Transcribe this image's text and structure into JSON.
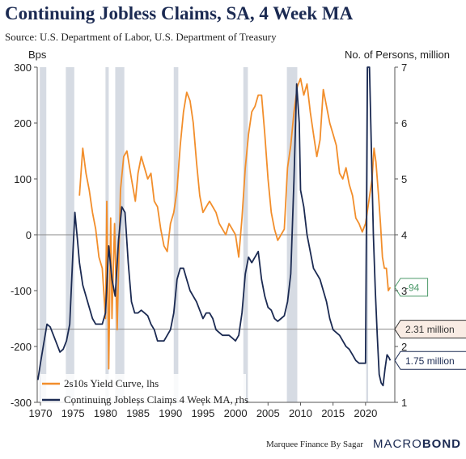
{
  "header": {
    "title": "Continuing Jobless Claims, SA, 4 Week MA",
    "source": "Source: U.S. Department of Labor, U.S. Department of Treasury"
  },
  "footer": {
    "credit": "Marquee Finance By Sagar",
    "brand_prefix": "MACRO",
    "brand_suffix": "BOND"
  },
  "chart_data": {
    "type": "line",
    "left_axis": {
      "label": "Bps",
      "ylim": [
        -300,
        300
      ],
      "ticks": [
        300,
        200,
        100,
        0,
        -100,
        -200,
        -300
      ]
    },
    "right_axis": {
      "label": "No. of Persons, million",
      "ylim": [
        1,
        7
      ],
      "ticks": [
        7,
        6,
        5,
        4,
        3,
        2,
        1
      ]
    },
    "x_axis": {
      "xlim": [
        1969.5,
        2024.5
      ],
      "ticks": [
        1970,
        1975,
        1980,
        1985,
        1990,
        1995,
        2000,
        2005,
        2010,
        2015,
        2020
      ]
    },
    "recessions": [
      [
        1969.9,
        1970.9
      ],
      [
        1973.9,
        1975.2
      ],
      [
        1980.0,
        1980.5
      ],
      [
        1981.5,
        1982.9
      ],
      [
        1990.5,
        1991.2
      ],
      [
        2001.2,
        2001.9
      ],
      [
        2007.9,
        2009.5
      ],
      [
        2020.1,
        2020.4
      ]
    ],
    "reference_lines": [
      {
        "axis": "left",
        "value": 0
      },
      {
        "axis": "right",
        "value": 2.31
      }
    ],
    "series": [
      {
        "name": "2s10s Yield Curve, lhs",
        "axis": "left",
        "color": "#f28e2b",
        "points": [
          [
            1976.0,
            70
          ],
          [
            1976.5,
            155
          ],
          [
            1977.0,
            110
          ],
          [
            1977.5,
            80
          ],
          [
            1978.0,
            40
          ],
          [
            1978.5,
            10
          ],
          [
            1979.0,
            -40
          ],
          [
            1979.5,
            -60
          ],
          [
            1980.0,
            -150
          ],
          [
            1980.2,
            60
          ],
          [
            1980.5,
            -240
          ],
          [
            1980.8,
            30
          ],
          [
            1981.0,
            -150
          ],
          [
            1981.4,
            20
          ],
          [
            1981.8,
            -170
          ],
          [
            1982.3,
            80
          ],
          [
            1982.8,
            140
          ],
          [
            1983.3,
            150
          ],
          [
            1984.0,
            100
          ],
          [
            1984.6,
            60
          ],
          [
            1985.0,
            110
          ],
          [
            1985.5,
            140
          ],
          [
            1986.0,
            120
          ],
          [
            1986.5,
            100
          ],
          [
            1987.0,
            110
          ],
          [
            1987.5,
            60
          ],
          [
            1988.0,
            50
          ],
          [
            1988.5,
            10
          ],
          [
            1989.0,
            -20
          ],
          [
            1989.5,
            -30
          ],
          [
            1990.0,
            20
          ],
          [
            1990.5,
            40
          ],
          [
            1991.0,
            80
          ],
          [
            1991.5,
            160
          ],
          [
            1992.0,
            220
          ],
          [
            1992.5,
            255
          ],
          [
            1993.0,
            240
          ],
          [
            1993.5,
            200
          ],
          [
            1994.0,
            130
          ],
          [
            1994.5,
            70
          ],
          [
            1995.0,
            40
          ],
          [
            1995.5,
            50
          ],
          [
            1996.0,
            60
          ],
          [
            1996.5,
            50
          ],
          [
            1997.0,
            40
          ],
          [
            1997.5,
            20
          ],
          [
            1998.0,
            10
          ],
          [
            1998.5,
            0
          ],
          [
            1999.0,
            20
          ],
          [
            1999.5,
            10
          ],
          [
            2000.0,
            0
          ],
          [
            2000.5,
            -40
          ],
          [
            2001.0,
            30
          ],
          [
            2001.5,
            120
          ],
          [
            2002.0,
            180
          ],
          [
            2002.5,
            220
          ],
          [
            2003.0,
            230
          ],
          [
            2003.5,
            250
          ],
          [
            2004.0,
            250
          ],
          [
            2004.5,
            180
          ],
          [
            2005.0,
            100
          ],
          [
            2005.5,
            40
          ],
          [
            2006.0,
            10
          ],
          [
            2006.5,
            -10
          ],
          [
            2007.0,
            0
          ],
          [
            2007.5,
            10
          ],
          [
            2008.0,
            120
          ],
          [
            2008.5,
            160
          ],
          [
            2009.0,
            220
          ],
          [
            2009.5,
            265
          ],
          [
            2010.0,
            280
          ],
          [
            2010.5,
            250
          ],
          [
            2011.0,
            270
          ],
          [
            2011.5,
            220
          ],
          [
            2012.0,
            180
          ],
          [
            2012.5,
            140
          ],
          [
            2013.0,
            170
          ],
          [
            2013.5,
            260
          ],
          [
            2014.0,
            230
          ],
          [
            2014.5,
            200
          ],
          [
            2015.0,
            180
          ],
          [
            2015.5,
            160
          ],
          [
            2016.0,
            110
          ],
          [
            2016.5,
            100
          ],
          [
            2017.0,
            120
          ],
          [
            2017.5,
            90
          ],
          [
            2018.0,
            70
          ],
          [
            2018.5,
            30
          ],
          [
            2019.0,
            20
          ],
          [
            2019.5,
            5
          ],
          [
            2020.0,
            20
          ],
          [
            2020.5,
            60
          ],
          [
            2021.0,
            100
          ],
          [
            2021.3,
            155
          ],
          [
            2021.6,
            130
          ],
          [
            2022.0,
            70
          ],
          [
            2022.3,
            20
          ],
          [
            2022.6,
            -40
          ],
          [
            2022.9,
            -60
          ],
          [
            2023.2,
            -60
          ],
          [
            2023.5,
            -100
          ],
          [
            2023.8,
            -94
          ]
        ]
      },
      {
        "name": "Continuing Jobless Claims 4 Week MA, rhs",
        "axis": "right",
        "color": "#1b2a52",
        "points": [
          [
            1969.6,
            1.4
          ],
          [
            1970.0,
            1.7
          ],
          [
            1970.5,
            2.05
          ],
          [
            1971.0,
            2.4
          ],
          [
            1971.5,
            2.35
          ],
          [
            1972.0,
            2.2
          ],
          [
            1972.5,
            2.05
          ],
          [
            1973.0,
            1.9
          ],
          [
            1973.5,
            1.95
          ],
          [
            1974.0,
            2.1
          ],
          [
            1974.5,
            2.4
          ],
          [
            1975.0,
            3.7
          ],
          [
            1975.3,
            4.4
          ],
          [
            1975.7,
            3.9
          ],
          [
            1976.0,
            3.5
          ],
          [
            1976.5,
            3.1
          ],
          [
            1977.0,
            2.9
          ],
          [
            1977.5,
            2.7
          ],
          [
            1978.0,
            2.5
          ],
          [
            1978.5,
            2.4
          ],
          [
            1979.0,
            2.4
          ],
          [
            1979.5,
            2.4
          ],
          [
            1980.0,
            2.6
          ],
          [
            1980.5,
            3.8
          ],
          [
            1981.0,
            3.2
          ],
          [
            1981.5,
            2.9
          ],
          [
            1982.0,
            3.9
          ],
          [
            1982.5,
            4.5
          ],
          [
            1983.0,
            4.4
          ],
          [
            1983.5,
            3.5
          ],
          [
            1984.0,
            2.8
          ],
          [
            1984.5,
            2.6
          ],
          [
            1985.0,
            2.6
          ],
          [
            1985.5,
            2.65
          ],
          [
            1986.0,
            2.6
          ],
          [
            1986.5,
            2.55
          ],
          [
            1987.0,
            2.4
          ],
          [
            1987.5,
            2.3
          ],
          [
            1988.0,
            2.1
          ],
          [
            1988.5,
            2.1
          ],
          [
            1989.0,
            2.1
          ],
          [
            1989.5,
            2.2
          ],
          [
            1990.0,
            2.3
          ],
          [
            1990.5,
            2.6
          ],
          [
            1991.0,
            3.2
          ],
          [
            1991.5,
            3.4
          ],
          [
            1992.0,
            3.4
          ],
          [
            1992.5,
            3.2
          ],
          [
            1993.0,
            3.0
          ],
          [
            1993.5,
            2.9
          ],
          [
            1994.0,
            2.8
          ],
          [
            1994.5,
            2.65
          ],
          [
            1995.0,
            2.5
          ],
          [
            1995.5,
            2.6
          ],
          [
            1996.0,
            2.6
          ],
          [
            1996.5,
            2.5
          ],
          [
            1997.0,
            2.3
          ],
          [
            1997.5,
            2.25
          ],
          [
            1998.0,
            2.2
          ],
          [
            1998.5,
            2.2
          ],
          [
            1999.0,
            2.2
          ],
          [
            1999.5,
            2.15
          ],
          [
            2000.0,
            2.1
          ],
          [
            2000.5,
            2.2
          ],
          [
            2001.0,
            2.6
          ],
          [
            2001.5,
            3.3
          ],
          [
            2002.0,
            3.6
          ],
          [
            2002.5,
            3.5
          ],
          [
            2003.0,
            3.6
          ],
          [
            2003.5,
            3.7
          ],
          [
            2004.0,
            3.2
          ],
          [
            2004.5,
            2.9
          ],
          [
            2005.0,
            2.7
          ],
          [
            2005.5,
            2.65
          ],
          [
            2006.0,
            2.5
          ],
          [
            2006.5,
            2.45
          ],
          [
            2007.0,
            2.5
          ],
          [
            2007.5,
            2.55
          ],
          [
            2008.0,
            2.8
          ],
          [
            2008.5,
            3.3
          ],
          [
            2009.0,
            5.0
          ],
          [
            2009.4,
            6.7
          ],
          [
            2009.8,
            6.0
          ],
          [
            2010.0,
            4.8
          ],
          [
            2010.5,
            4.5
          ],
          [
            2011.0,
            4.0
          ],
          [
            2011.5,
            3.7
          ],
          [
            2012.0,
            3.4
          ],
          [
            2012.5,
            3.3
          ],
          [
            2013.0,
            3.2
          ],
          [
            2013.5,
            3.0
          ],
          [
            2014.0,
            2.8
          ],
          [
            2014.5,
            2.5
          ],
          [
            2015.0,
            2.3
          ],
          [
            2015.5,
            2.25
          ],
          [
            2016.0,
            2.2
          ],
          [
            2016.5,
            2.1
          ],
          [
            2017.0,
            2.0
          ],
          [
            2017.5,
            1.95
          ],
          [
            2018.0,
            1.85
          ],
          [
            2018.5,
            1.75
          ],
          [
            2019.0,
            1.7
          ],
          [
            2019.5,
            1.7
          ],
          [
            2020.0,
            1.7
          ],
          [
            2020.3,
            7.2
          ],
          [
            2020.6,
            7.2
          ],
          [
            2020.9,
            5.5
          ],
          [
            2021.2,
            4.0
          ],
          [
            2021.5,
            3.0
          ],
          [
            2021.8,
            2.2
          ],
          [
            2022.1,
            1.5
          ],
          [
            2022.4,
            1.35
          ],
          [
            2022.7,
            1.3
          ],
          [
            2023.0,
            1.6
          ],
          [
            2023.3,
            1.85
          ],
          [
            2023.6,
            1.8
          ],
          [
            2023.8,
            1.75
          ]
        ]
      }
    ],
    "end_labels": [
      {
        "axis": "left",
        "value": -94,
        "text": "-94",
        "color": "#4c9a6a",
        "bg": "#ffffff"
      },
      {
        "axis": "right",
        "value": 2.31,
        "text": "2.31 million",
        "color": "#333333",
        "bg": "#f9ece4"
      },
      {
        "axis": "right",
        "value": 1.75,
        "text": "1.75 million",
        "color": "#1b2a52",
        "bg": "#ffffff"
      }
    ]
  }
}
